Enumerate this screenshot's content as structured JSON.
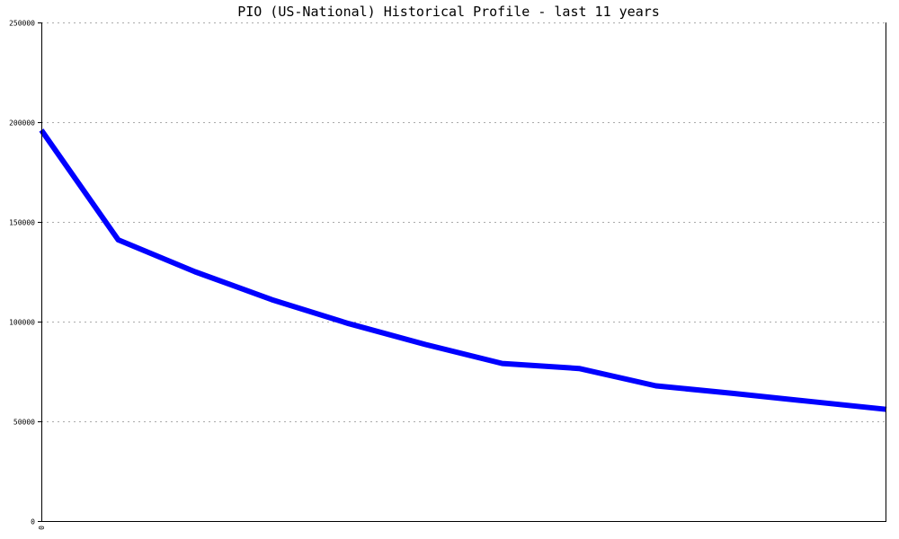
{
  "chart_data": {
    "type": "line",
    "title": "PIO (US-National) Historical Profile - last 11 years",
    "xlabel": "",
    "ylabel": "",
    "ylim": [
      0,
      250000
    ],
    "yticks": [
      "0",
      "50000",
      "100000",
      "150000",
      "200000",
      "250000"
    ],
    "xticks": [
      "0"
    ],
    "grid": true,
    "legend": "none",
    "series": [
      {
        "color": "#0000ff",
        "x": [
          0,
          1,
          2,
          3,
          4,
          5,
          6,
          7,
          8,
          9,
          10,
          11
        ],
        "y": [
          196000,
          141000,
          125000,
          111000,
          99000,
          88500,
          79000,
          76500,
          67800,
          64000,
          60000,
          56000
        ]
      }
    ]
  }
}
